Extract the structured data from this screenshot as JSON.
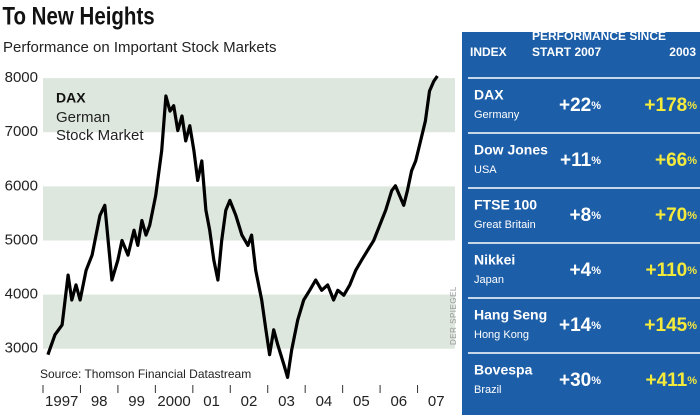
{
  "chart_data": {
    "type": "line",
    "title": "To New Heights",
    "subtitle": "Performance on Important Stock Markets",
    "annotation": [
      "German",
      "Stock Market"
    ],
    "source": "Source: Thomson Financial Datastream",
    "credit": "DER SPIEGEL",
    "x": [
      1997.13,
      1997.32,
      1997.51,
      1997.67,
      1997.77,
      1997.88,
      1997.99,
      1998.15,
      1998.31,
      1998.52,
      1998.65,
      1998.84,
      1999.0,
      1999.11,
      1999.27,
      1999.43,
      1999.53,
      1999.64,
      1999.75,
      1999.85,
      2000.01,
      2000.17,
      2000.28,
      2000.39,
      2000.49,
      2000.6,
      2000.71,
      2000.81,
      2000.92,
      2001.03,
      2001.13,
      2001.24,
      2001.35,
      2001.45,
      2001.56,
      2001.67,
      2001.77,
      2001.88,
      2001.99,
      2002.15,
      2002.31,
      2002.47,
      2002.57,
      2002.68,
      2002.84,
      2002.95,
      2003.05,
      2003.16,
      2003.27,
      2003.43,
      2003.53,
      2003.64,
      2003.8,
      2003.96,
      2004.12,
      2004.28,
      2004.44,
      2004.6,
      2004.76,
      2004.87,
      2005.03,
      2005.19,
      2005.35,
      2005.51,
      2005.67,
      2005.83,
      2005.99,
      2006.15,
      2006.31,
      2006.41,
      2006.52,
      2006.63,
      2006.73,
      2006.84,
      2006.95,
      2007.05,
      2007.21,
      2007.32,
      2007.43,
      2007.53
    ],
    "series": [
      {
        "name": "DAX",
        "color": "#000000",
        "values": [
          2890,
          3260,
          3440,
          4360,
          3900,
          4180,
          3900,
          4450,
          4730,
          5460,
          5650,
          4270,
          4640,
          5000,
          4730,
          5190,
          4910,
          5370,
          5100,
          5280,
          5830,
          6660,
          7670,
          7390,
          7490,
          7030,
          7300,
          6840,
          7120,
          6660,
          6110,
          6470,
          5560,
          5190,
          4640,
          4270,
          5000,
          5560,
          5740,
          5460,
          5100,
          4910,
          5100,
          4450,
          3900,
          3350,
          2890,
          3350,
          3070,
          2710,
          2470,
          2980,
          3530,
          3900,
          4080,
          4270,
          4080,
          4180,
          3900,
          4080,
          3990,
          4180,
          4450,
          4640,
          4820,
          5000,
          5280,
          5560,
          5920,
          6010,
          5830,
          5650,
          5920,
          6290,
          6470,
          6750,
          7210,
          7760,
          7940,
          8040
        ]
      }
    ],
    "xlim": [
      1997,
      2008
    ],
    "xticks": [
      1997,
      {
        "value": 1998,
        "label": "98"
      },
      {
        "value": 1999,
        "label": "99"
      },
      2000,
      {
        "value": 2001,
        "label": "01"
      },
      {
        "value": 2002,
        "label": "02"
      },
      {
        "value": 2003,
        "label": "03"
      },
      {
        "value": 2004,
        "label": "04"
      },
      {
        "value": 2005,
        "label": "05"
      },
      {
        "value": 2006,
        "label": "06"
      },
      {
        "value": 2007,
        "label": "07"
      }
    ],
    "ylim": [
      2330,
      8150
    ],
    "yticks": [
      3000,
      4000,
      5000,
      6000,
      7000,
      8000
    ],
    "bands": true
  },
  "table": {
    "headers": {
      "index": "INDEX",
      "performance": "PERFORMANCE SINCE",
      "since_2007": "START 2007",
      "since_2003": "2003"
    },
    "rows": [
      {
        "index": "DAX",
        "country": "Germany",
        "since_2007": "+22%",
        "since_2003": "+178%"
      },
      {
        "index": "Dow Jones",
        "country": "USA",
        "since_2007": "+11%",
        "since_2003": "+66%"
      },
      {
        "index": "FTSE 100",
        "country": "Great Britain",
        "since_2007": "+8%",
        "since_2003": "+70%"
      },
      {
        "index": "Nikkei",
        "country": "Japan",
        "since_2007": "+4%",
        "since_2003": "+110%"
      },
      {
        "index": "Hang Seng",
        "country": "Hong Kong",
        "since_2007": "+14%",
        "since_2003": "+145%"
      },
      {
        "index": "Bovespa",
        "country": "Brazil",
        "since_2007": "+30%",
        "since_2003": "+411%"
      }
    ]
  }
}
